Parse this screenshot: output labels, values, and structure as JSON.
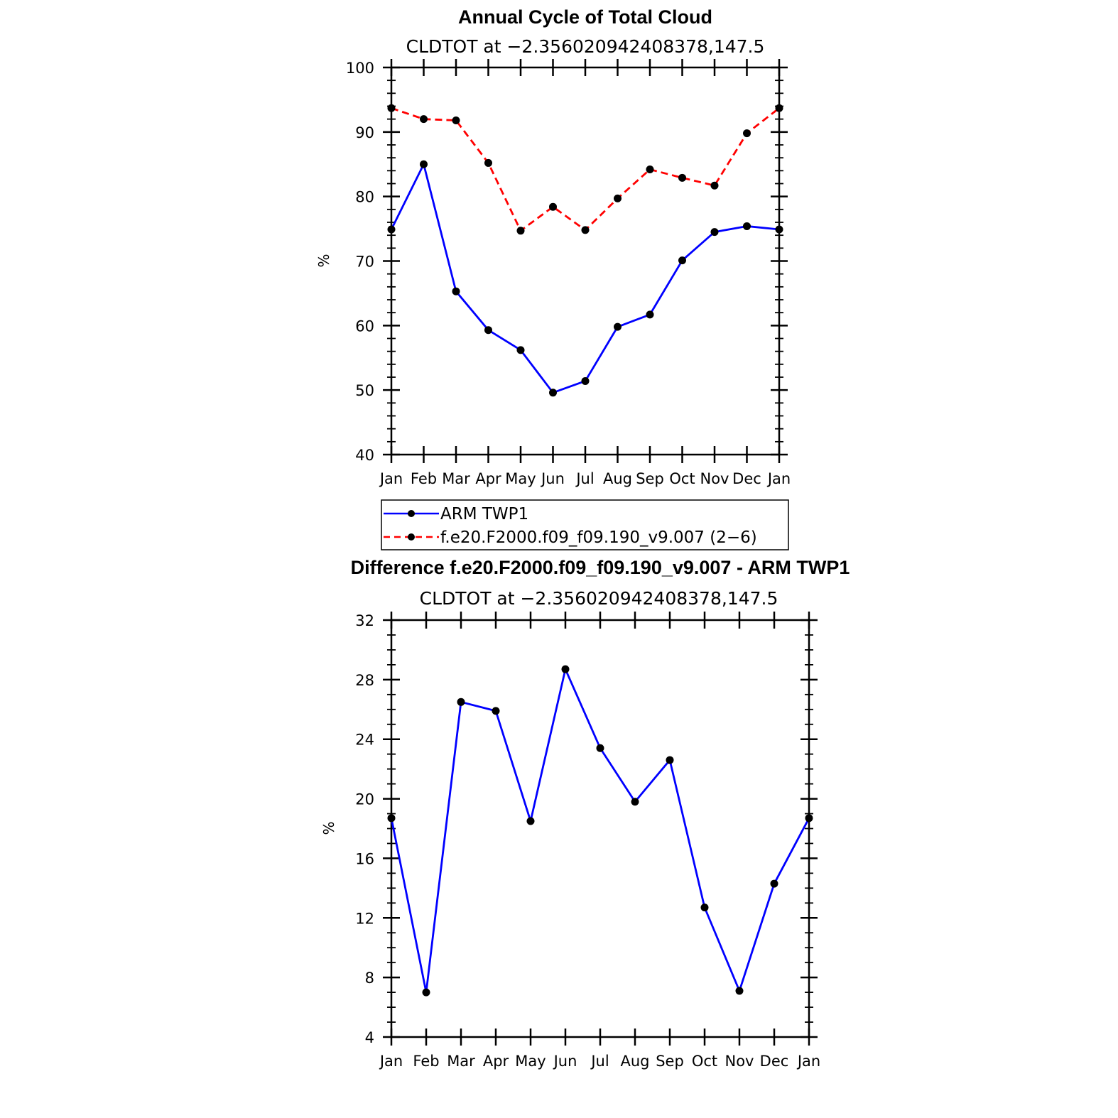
{
  "chart_data": [
    {
      "type": "line",
      "title": "Annual Cycle of Total Cloud",
      "subtitle": "CLDTOT at −2.356020942408378,147.5",
      "ylabel": "%",
      "xlabel": "",
      "categories": [
        "Jan",
        "Feb",
        "Mar",
        "Apr",
        "May",
        "Jun",
        "Jul",
        "Aug",
        "Sep",
        "Oct",
        "Nov",
        "Dec",
        "Jan"
      ],
      "ylim": [
        40,
        100
      ],
      "yticks": [
        40,
        50,
        60,
        70,
        80,
        90,
        100
      ],
      "grid": false,
      "legend_position": "below",
      "series": [
        {
          "name": "ARM TWP1",
          "color": "#0000ff",
          "dash": "solid",
          "values": [
            74.9,
            85.0,
            65.3,
            59.3,
            56.2,
            49.6,
            51.4,
            59.8,
            61.7,
            70.1,
            74.5,
            75.4,
            74.9
          ]
        },
        {
          "name": "f.e20.F2000.f09_f09.190_v9.007 (2−6)",
          "color": "#ff0000",
          "dash": "dashed",
          "values": [
            93.7,
            92.0,
            91.8,
            85.2,
            74.7,
            78.4,
            74.8,
            79.7,
            84.2,
            82.9,
            81.7,
            89.8,
            93.7
          ]
        }
      ]
    },
    {
      "type": "line",
      "title": "Difference f.e20.F2000.f09_f09.190_v9.007 - ARM TWP1",
      "subtitle": "CLDTOT at −2.356020942408378,147.5",
      "ylabel": "%",
      "xlabel": "",
      "categories": [
        "Jan",
        "Feb",
        "Mar",
        "Apr",
        "May",
        "Jun",
        "Jul",
        "Aug",
        "Sep",
        "Oct",
        "Nov",
        "Dec",
        "Jan"
      ],
      "ylim": [
        4,
        32
      ],
      "yticks": [
        4,
        8,
        12,
        16,
        20,
        24,
        28,
        32
      ],
      "grid": false,
      "series": [
        {
          "color": "#0000ff",
          "dash": "solid",
          "values": [
            18.7,
            7.0,
            26.5,
            25.9,
            18.5,
            28.7,
            23.4,
            19.8,
            22.6,
            12.7,
            7.1,
            14.3,
            18.7
          ]
        }
      ]
    }
  ]
}
